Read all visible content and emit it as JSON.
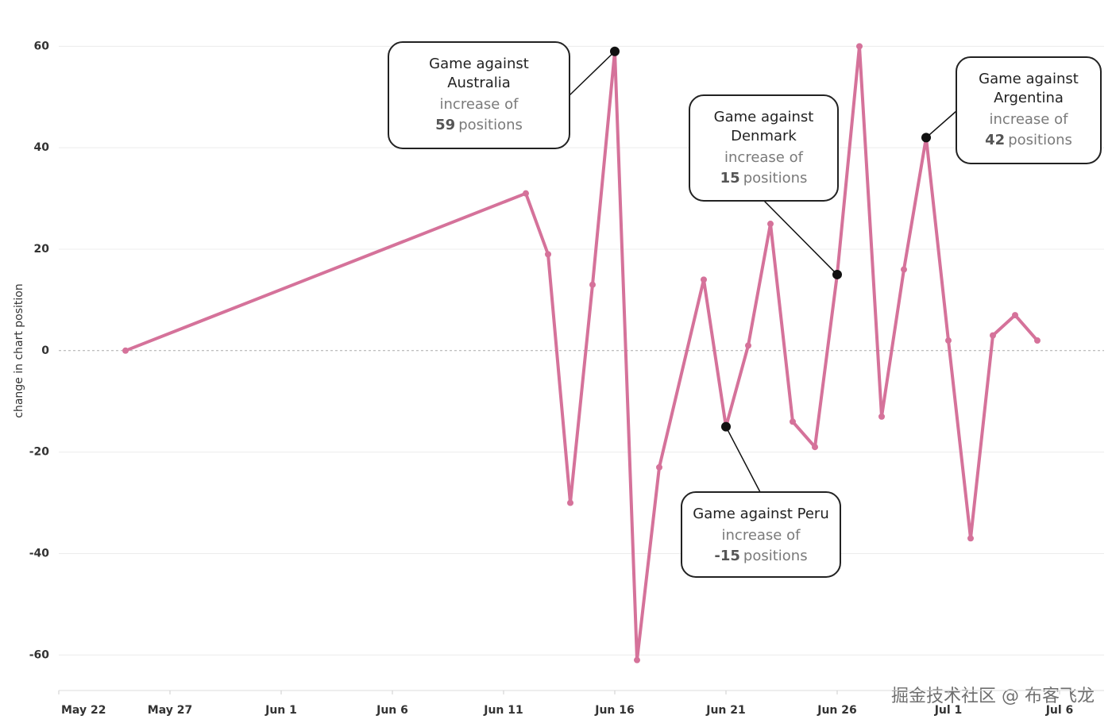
{
  "chart_data": {
    "type": "line",
    "y_label": "change in chart position",
    "x": [
      "May 25",
      "Jun 12",
      "Jun 13",
      "Jun 14",
      "Jun 15",
      "Jun 16",
      "Jun 17",
      "Jun 18",
      "Jun 20",
      "Jun 21",
      "Jun 22",
      "Jun 23",
      "Jun 24",
      "Jun 25",
      "Jun 26",
      "Jun 27",
      "Jun 28",
      "Jun 29",
      "Jun 30",
      "Jul 1",
      "Jul 2",
      "Jul 3",
      "Jul 4",
      "Jul 5"
    ],
    "values": [
      0,
      31,
      19,
      -30,
      13,
      59,
      -61,
      -23,
      14,
      -15,
      1,
      25,
      -14,
      -19,
      15,
      60,
      -13,
      16,
      42,
      2,
      -37,
      3,
      7,
      2
    ],
    "color": "#d5729a",
    "xlim": [
      "May 22",
      "Jul 8"
    ],
    "xticks": [
      "May 22",
      "May 27",
      "Jun 1",
      "Jun 6",
      "Jun 11",
      "Jun 16",
      "Jun 21",
      "Jun 26",
      "Jul 1",
      "Jul 6"
    ],
    "ylim": [
      -67,
      66
    ],
    "yticks": [
      -60,
      -40,
      -20,
      0,
      20,
      40,
      60
    ],
    "grid": true,
    "annotations": [
      {
        "title": [
          "Game against",
          "Australia"
        ],
        "text": "increase of",
        "number": 59,
        "unit": "positions",
        "x": "Jun 16",
        "y": 59
      },
      {
        "title": [
          "Game against",
          "Denmark"
        ],
        "text": "increase of",
        "number": 15,
        "unit": "positions",
        "x": "Jun 26",
        "y": 15
      },
      {
        "title": [
          "Game against",
          "Argentina"
        ],
        "text": "increase of",
        "number": 42,
        "unit": "positions",
        "x": "Jun 30",
        "y": 42
      },
      {
        "title": [
          "Game against Peru"
        ],
        "text": "increase of",
        "number": -15,
        "unit": "positions",
        "x": "Jun 21",
        "y": -15
      }
    ]
  },
  "watermark": "掘金技术社区 @ 布客飞龙"
}
